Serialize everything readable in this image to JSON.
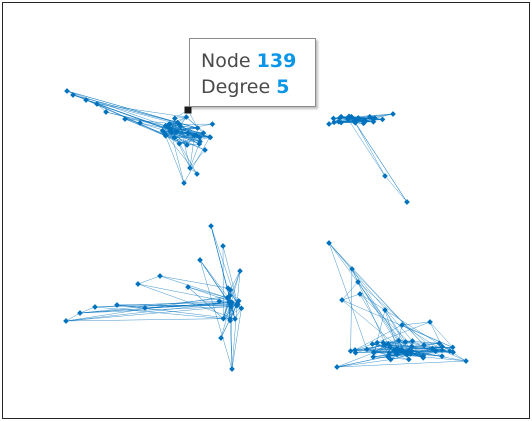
{
  "datatip": {
    "node_label": "Node",
    "node_value": "139",
    "degree_label": "Degree",
    "degree_value": "5"
  },
  "colors": {
    "edge": "#0072BD",
    "node": "#0072BD",
    "highlight": "#1a1a1a",
    "axes": "#262626",
    "datatip_value": "#0b96e8"
  },
  "chart_data": {
    "type": "network_graph",
    "title": "",
    "grid": false,
    "components": 4,
    "datatip": {
      "node": 139,
      "degree": 5
    }
  }
}
